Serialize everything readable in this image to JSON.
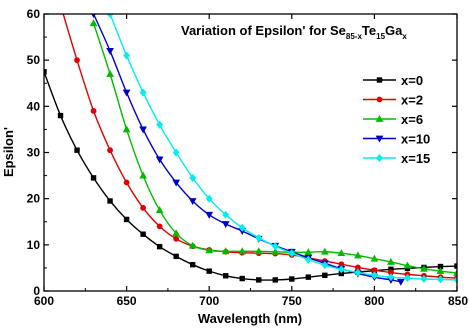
{
  "chart_data": {
    "type": "line",
    "title": {
      "prefix": "Variation of Epsilon' for Se",
      "sub1": "85-x",
      "mid1": "Te",
      "sub2": "15",
      "mid2": "Ga",
      "sub3": "x"
    },
    "xlabel": "Wavelength (nm)",
    "ylabel": "Epsilon'",
    "xlim": [
      600,
      850
    ],
    "ylim": [
      0,
      60
    ],
    "xticks": [
      600,
      650,
      700,
      750,
      800,
      850
    ],
    "yticks": [
      0,
      10,
      20,
      30,
      40,
      50,
      60
    ],
    "legend_position": "right",
    "series": [
      {
        "name": "x=0",
        "color": "#000000",
        "marker": "square",
        "x": [
          600,
          610,
          620,
          630,
          640,
          650,
          660,
          670,
          680,
          690,
          700,
          710,
          720,
          730,
          740,
          750,
          760,
          770,
          780,
          790,
          800,
          810,
          820,
          830,
          840,
          850
        ],
        "y": [
          47.5,
          38,
          30.5,
          24.5,
          19.5,
          15.5,
          12.3,
          9.6,
          7.5,
          5.7,
          4.3,
          3.3,
          2.7,
          2.4,
          2.4,
          2.6,
          3.0,
          3.4,
          3.8,
          4.1,
          4.4,
          4.7,
          4.9,
          5.1,
          5.3,
          5.4
        ]
      },
      {
        "name": "x=2",
        "color": "#e00000",
        "marker": "circle",
        "x": [
          610,
          620,
          630,
          640,
          650,
          660,
          670,
          680,
          690,
          700,
          710,
          720,
          730,
          740,
          750,
          760,
          770,
          780,
          790,
          800,
          810,
          820,
          830,
          840,
          850
        ],
        "y": [
          62,
          50,
          39,
          30.5,
          23.5,
          18,
          14,
          11.3,
          9.7,
          8.9,
          8.5,
          8.3,
          8.2,
          8.1,
          7.8,
          7.2,
          6.5,
          5.8,
          5.1,
          4.5,
          4.0,
          3.6,
          3.3,
          3.0,
          2.8
        ]
      },
      {
        "name": "x=6",
        "color": "#00bb00",
        "marker": "triangle-up",
        "x": [
          630,
          640,
          650,
          660,
          670,
          680,
          690,
          700,
          710,
          720,
          730,
          740,
          750,
          760,
          770,
          780,
          790,
          800,
          810,
          820,
          830,
          840,
          850
        ],
        "y": [
          58,
          47,
          35,
          25,
          17.5,
          12.5,
          9.8,
          8.8,
          8.6,
          8.6,
          8.6,
          8.5,
          8.4,
          8.4,
          8.5,
          8.2,
          7.7,
          7.0,
          6.3,
          5.5,
          4.8,
          4.3,
          3.9
        ]
      },
      {
        "name": "x=10",
        "color": "#0000cc",
        "marker": "triangle-down",
        "x": [
          630,
          640,
          650,
          660,
          670,
          680,
          690,
          700,
          710,
          720,
          730,
          740,
          750,
          760,
          770,
          780,
          790,
          800,
          810,
          816
        ],
        "y": [
          60,
          52,
          43,
          35,
          28.5,
          23.5,
          19.5,
          16.5,
          14.5,
          13,
          11.3,
          9.8,
          8.5,
          7.2,
          6.0,
          4.8,
          3.8,
          3.0,
          2.4,
          2.0
        ]
      },
      {
        "name": "x=15",
        "color": "#00eeee",
        "marker": "diamond",
        "x": [
          640,
          650,
          660,
          670,
          680,
          690,
          700,
          710,
          720,
          730,
          740,
          750,
          760,
          770,
          780,
          790,
          800,
          810,
          820,
          830,
          840,
          850
        ],
        "y": [
          60,
          51,
          43,
          36,
          30,
          24.5,
          20,
          16.5,
          13.7,
          11.5,
          9.7,
          8.2,
          6.8,
          5.6,
          4.7,
          4.0,
          3.4,
          3.0,
          2.8,
          2.6,
          2.5,
          2.4
        ]
      }
    ]
  }
}
